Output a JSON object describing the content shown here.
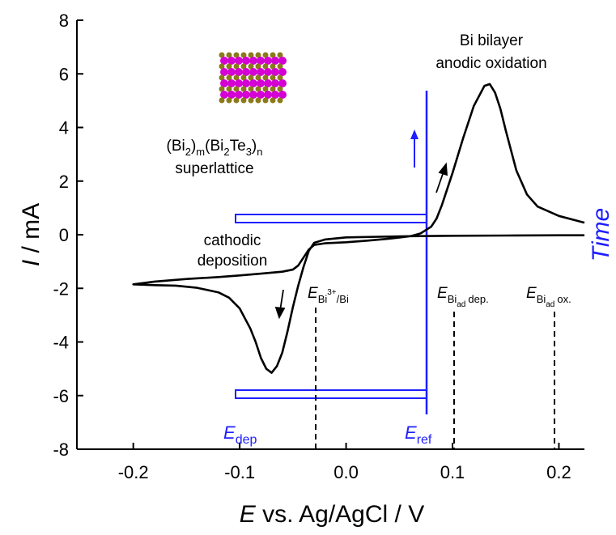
{
  "chart_data": {
    "type": "line",
    "xlabel": [
      "E",
      " vs. Ag/AgCl / V"
    ],
    "ylabel": [
      "I",
      " / mA"
    ],
    "y2label": "Time",
    "xlim": [
      -0.253,
      0.224
    ],
    "ylim": [
      -8,
      8
    ],
    "xticks": [
      -0.2,
      -0.1,
      {
        "value": 0,
        "label": "0.0"
      },
      0.1,
      0.2
    ],
    "yticks": [
      -8,
      -6,
      -4,
      -2,
      0,
      2,
      4,
      6,
      8
    ],
    "color": "#000000",
    "x": [
      0.224,
      0.2,
      0.15,
      0.1,
      0.05,
      0.0,
      -0.02,
      -0.03,
      -0.035,
      -0.04,
      -0.045,
      -0.05,
      -0.055,
      -0.06,
      -0.065,
      -0.07,
      -0.075,
      -0.08,
      -0.085,
      -0.09,
      -0.1,
      -0.11,
      -0.12,
      -0.14,
      -0.16,
      -0.18,
      -0.2,
      -0.18,
      -0.15,
      -0.12,
      -0.1,
      -0.08,
      -0.06,
      -0.05,
      -0.045,
      -0.04,
      -0.035,
      -0.03,
      -0.02,
      0.0,
      0.02,
      0.04,
      0.06,
      0.07,
      0.08,
      0.085,
      0.09,
      0.1,
      0.11,
      0.12,
      0.13,
      0.135,
      0.14,
      0.145,
      0.15,
      0.16,
      0.17,
      0.18,
      0.2,
      0.224
    ],
    "values": [
      -0.02,
      -0.02,
      -0.03,
      -0.04,
      -0.06,
      -0.1,
      -0.18,
      -0.3,
      -0.6,
      -1.2,
      -1.9,
      -2.7,
      -3.6,
      -4.4,
      -4.9,
      -5.15,
      -5.0,
      -4.6,
      -4.0,
      -3.5,
      -2.75,
      -2.35,
      -2.15,
      -1.98,
      -1.9,
      -1.88,
      -1.85,
      -1.75,
      -1.65,
      -1.58,
      -1.52,
      -1.45,
      -1.38,
      -1.3,
      -1.15,
      -0.85,
      -0.55,
      -0.38,
      -0.32,
      -0.28,
      -0.22,
      -0.15,
      -0.06,
      0.05,
      0.3,
      0.6,
      1.1,
      2.3,
      3.6,
      4.8,
      5.55,
      5.62,
      5.3,
      4.7,
      3.9,
      2.4,
      1.5,
      1.05,
      0.7,
      0.45
    ],
    "annotations": {
      "oxidation": [
        "Bi bilayer",
        "anodic oxidation"
      ],
      "superlattice": [
        "(Bi",
        "2",
        ")",
        "m",
        "(Bi",
        "2",
        "Te",
        "3",
        ")",
        "n"
      ],
      "superlattice_name": "superlattice",
      "deposition": [
        "cathodic",
        "deposition"
      ],
      "e_bi": [
        "E",
        "Bi",
        "3+",
        "/Bi"
      ],
      "e_ad_dep": [
        "E",
        "Bi",
        "ad",
        "dep."
      ],
      "e_ad_ox": [
        "E",
        "Bi",
        "ad",
        "ox."
      ],
      "e_dep": [
        "E",
        "dep"
      ],
      "e_ref": [
        "E",
        "ref"
      ]
    }
  }
}
